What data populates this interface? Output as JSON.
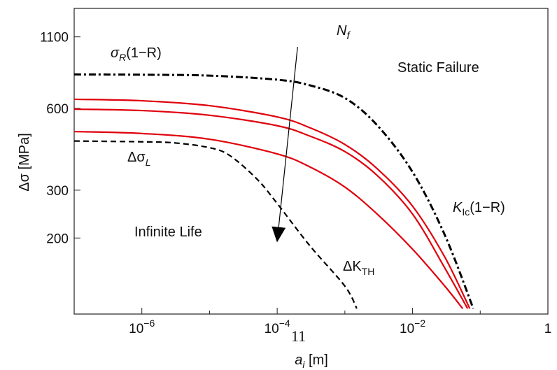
{
  "chart_data": {
    "type": "line",
    "xscale": "log",
    "yscale": "log",
    "xlim": [
      1e-07,
      1
    ],
    "ylim": [
      105,
      1400
    ],
    "grid": false,
    "xlabel": {
      "main": "a",
      "sub": "i",
      "unit": " [m]"
    },
    "ylabel": {
      "main": "Δσ",
      "unit": " [MPa]"
    },
    "xticks": [
      {
        "value": 1e-06,
        "base": "10",
        "exp": "−6"
      },
      {
        "value": 0.0001,
        "base": "10",
        "exp": "−4"
      },
      {
        "value": 0.01,
        "base": "10",
        "exp": "−2"
      },
      {
        "value": 1,
        "label": "1"
      }
    ],
    "yticks": [
      {
        "value": 1100,
        "label": "1100"
      },
      {
        "value": 600,
        "label": "600"
      },
      {
        "value": 300,
        "label": "300"
      },
      {
        "value": 200,
        "label": "200"
      }
    ],
    "series": [
      {
        "style": "dash-dot",
        "color": "#000000",
        "points": [
          [
            1e-07,
            800
          ],
          [
            1e-06,
            798
          ],
          [
            1e-05,
            792
          ],
          [
            0.0001,
            765
          ],
          [
            0.0003,
            730
          ],
          [
            0.001,
            655
          ],
          [
            0.003,
            520
          ],
          [
            0.01,
            350
          ],
          [
            0.03,
            205
          ],
          [
            0.079,
            110
          ]
        ]
      },
      {
        "style": "solid",
        "color": "#e0000b",
        "points": [
          [
            1e-07,
            648
          ],
          [
            1e-06,
            640
          ],
          [
            1e-05,
            614
          ],
          [
            0.0001,
            558
          ],
          [
            0.0003,
            510
          ],
          [
            0.001,
            442
          ],
          [
            0.003,
            360
          ],
          [
            0.01,
            262
          ],
          [
            0.03,
            170
          ],
          [
            0.07,
            110
          ]
        ]
      },
      {
        "style": "solid",
        "color": "#e0000b",
        "points": [
          [
            1e-07,
            596
          ],
          [
            1e-06,
            589
          ],
          [
            1e-05,
            566
          ],
          [
            0.0001,
            518
          ],
          [
            0.0003,
            475
          ],
          [
            0.001,
            416
          ],
          [
            0.003,
            340
          ],
          [
            0.01,
            245
          ],
          [
            0.03,
            155
          ],
          [
            0.065,
            110
          ]
        ]
      },
      {
        "style": "solid",
        "color": "#e0000b",
        "points": [
          [
            1e-07,
            493
          ],
          [
            1e-06,
            485
          ],
          [
            1e-05,
            462
          ],
          [
            0.0001,
            408
          ],
          [
            0.0003,
            366
          ],
          [
            0.001,
            308
          ],
          [
            0.003,
            245
          ],
          [
            0.01,
            182
          ],
          [
            0.03,
            133
          ],
          [
            0.055,
            110
          ]
        ]
      },
      {
        "style": "dashed",
        "color": "#000000",
        "points": [
          [
            1e-07,
            455
          ],
          [
            1e-06,
            452
          ],
          [
            3e-06,
            448
          ],
          [
            1e-05,
            430
          ],
          [
            2e-05,
            402
          ],
          [
            5e-05,
            330
          ],
          [
            0.0001,
            268
          ],
          [
            0.0003,
            188
          ],
          [
            0.001,
            133
          ],
          [
            0.0015,
            110
          ]
        ]
      }
    ],
    "arrow": {
      "label": "Nf",
      "from": [
        0.0002,
        1010
      ],
      "to": [
        0.0001,
        195
      ]
    },
    "annotations": [
      {
        "id": "sigma-r",
        "main": "σ",
        "sub": "R",
        "rest": "(1−R)"
      },
      {
        "id": "static-failure",
        "text": "Static Failure"
      },
      {
        "id": "delta-sigma-l",
        "main": "Δσ",
        "sub": "L"
      },
      {
        "id": "infinite-life",
        "text": "Infinite Life"
      },
      {
        "id": "delta-k-th",
        "main": "ΔK",
        "sub": "TH"
      },
      {
        "id": "k-ic",
        "main": "K",
        "sub": "Ic",
        "rest": "(1−R)"
      },
      {
        "id": "stray-11",
        "text": "11"
      }
    ]
  }
}
